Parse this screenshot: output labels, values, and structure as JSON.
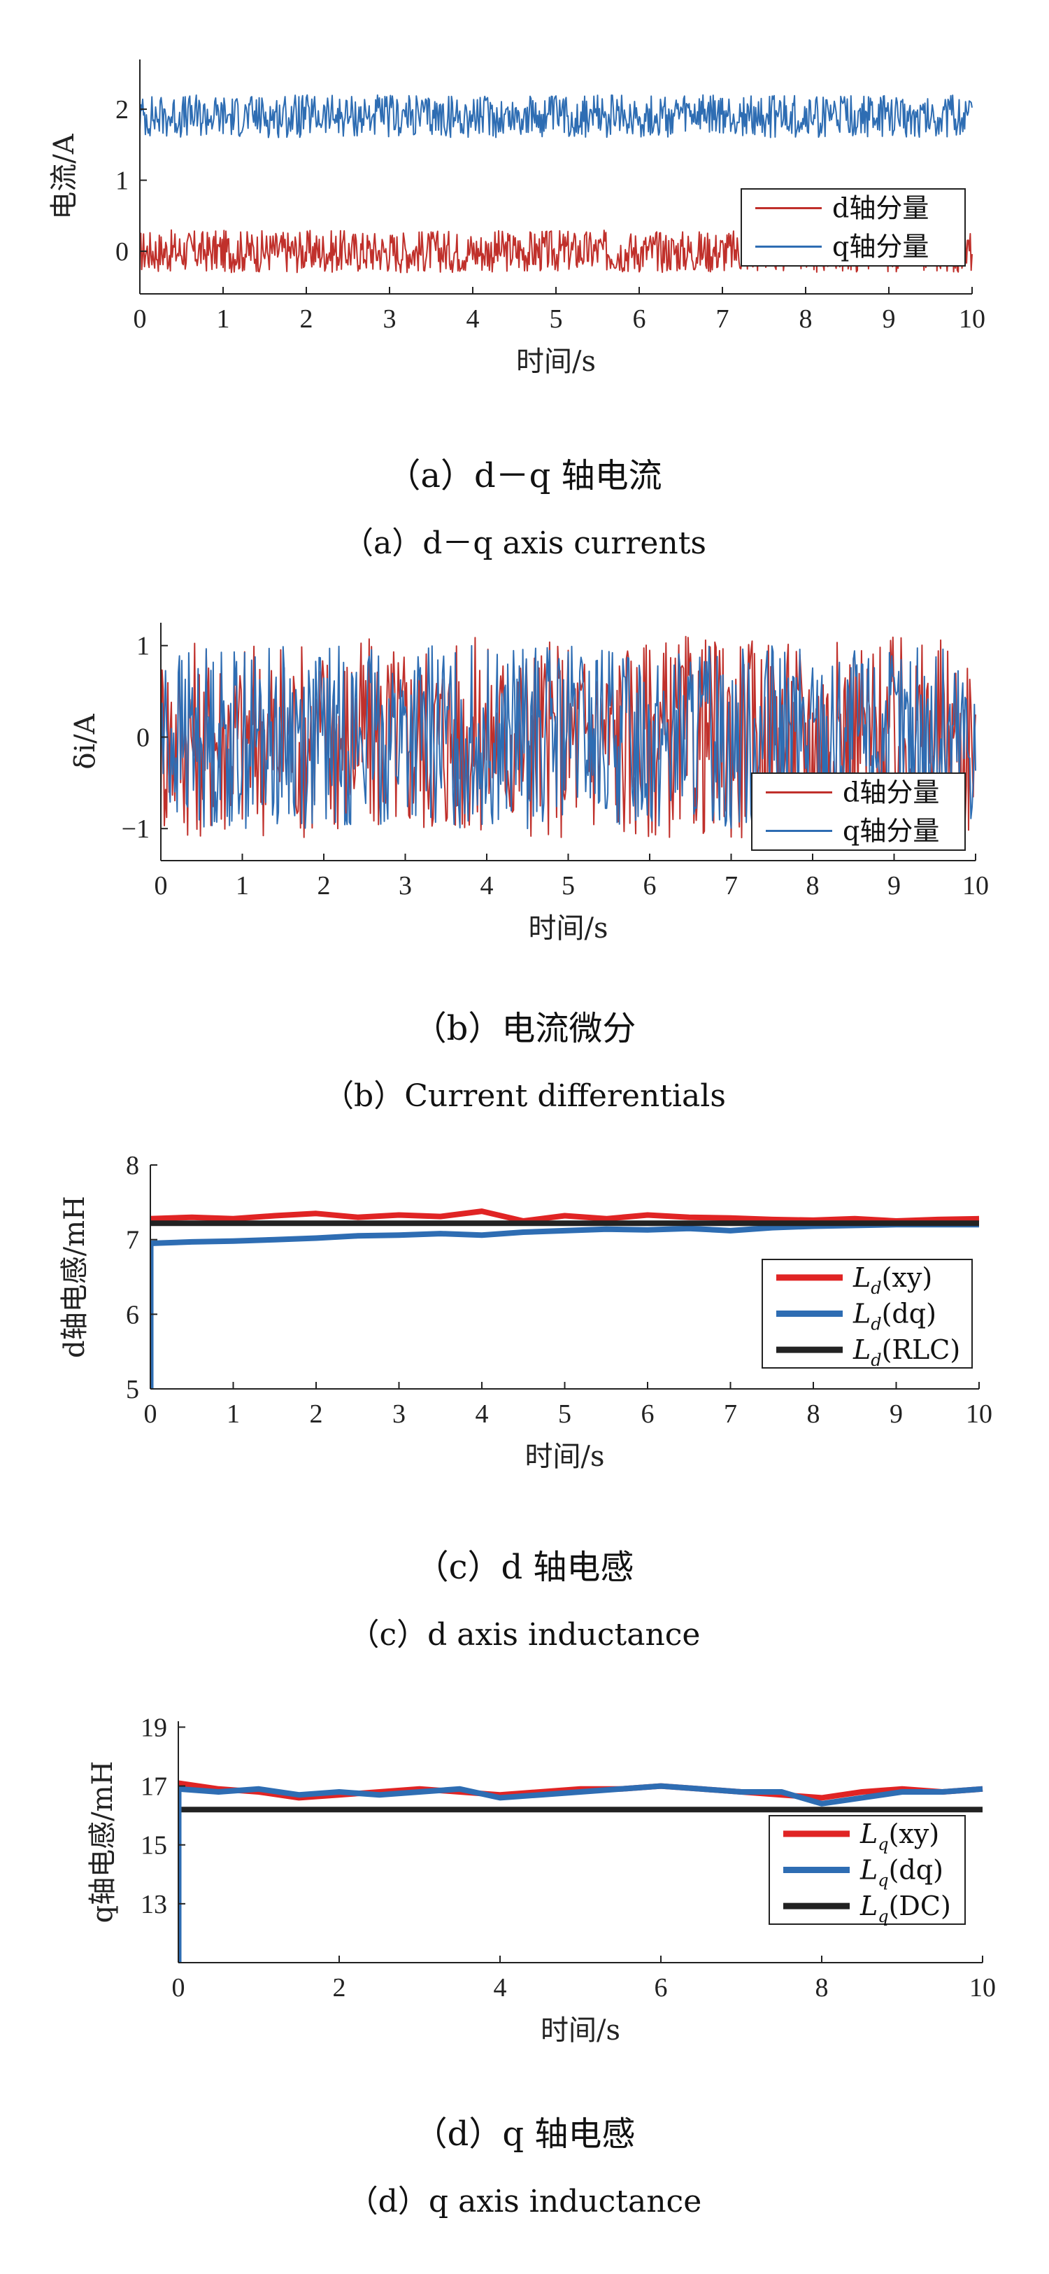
{
  "chart_data": [
    {
      "type": "line",
      "title": "",
      "xlabel": "时间/s",
      "ylabel": "电流/A",
      "xlim": [
        0,
        10
      ],
      "ylim": [
        -0.6,
        2.7
      ],
      "xticks": [
        "0",
        "1",
        "2",
        "3",
        "4",
        "5",
        "6",
        "7",
        "8",
        "9",
        "10"
      ],
      "yticks": [
        "0",
        "1",
        "2"
      ],
      "series": [
        {
          "name": "d轴分量",
          "color": "#c0302b",
          "mean": 0.0,
          "amplitude": 0.3,
          "samples": 900
        },
        {
          "name": "q轴分量",
          "color": "#2e6db3",
          "mean": 1.9,
          "amplitude": 0.3,
          "samples": 900
        }
      ],
      "legend": [
        "d轴分量",
        "q轴分量"
      ],
      "legend_position": "bottom-right",
      "caption_cn": "（a）d－q 轴电流",
      "caption_en": "（a）d－q axis currents"
    },
    {
      "type": "line",
      "title": "",
      "xlabel": "时间/s",
      "ylabel": "δi/A",
      "xlim": [
        0,
        10
      ],
      "ylim": [
        -1.35,
        1.25
      ],
      "xticks": [
        "0",
        "1",
        "2",
        "3",
        "4",
        "5",
        "6",
        "7",
        "8",
        "9",
        "10"
      ],
      "yticks": [
        "−1",
        "0",
        "1"
      ],
      "series": [
        {
          "name": "d轴分量",
          "color": "#c0302b",
          "mean": 0.0,
          "amplitude": 1.1,
          "samples": 700
        },
        {
          "name": "q轴分量",
          "color": "#2e6db3",
          "mean": 0.0,
          "amplitude": 1.0,
          "samples": 700
        }
      ],
      "legend": [
        "d轴分量",
        "q轴分量"
      ],
      "legend_position": "bottom-right",
      "caption_cn": "（b）电流微分",
      "caption_en": "（b）Current differentials"
    },
    {
      "type": "line",
      "title": "",
      "xlabel": "时间/s",
      "ylabel": "d轴电感/mH",
      "xlim": [
        0,
        10
      ],
      "ylim": [
        5,
        8
      ],
      "xticks": [
        "0",
        "1",
        "2",
        "3",
        "4",
        "5",
        "6",
        "7",
        "8",
        "9",
        "10"
      ],
      "yticks": [
        "5",
        "6",
        "7",
        "8"
      ],
      "series": [
        {
          "name": "L_d(xy)",
          "color": "#e02424",
          "x": [
            0,
            0.5,
            1,
            1.5,
            2,
            2.5,
            3,
            3.5,
            4,
            4.5,
            5,
            5.5,
            6,
            6.5,
            7,
            7.5,
            8,
            8.5,
            9,
            9.5,
            10
          ],
          "y": [
            7.28,
            7.3,
            7.28,
            7.32,
            7.35,
            7.3,
            7.33,
            7.31,
            7.38,
            7.25,
            7.32,
            7.28,
            7.33,
            7.3,
            7.29,
            7.27,
            7.26,
            7.28,
            7.25,
            7.27,
            7.28
          ]
        },
        {
          "name": "L_d(dq)",
          "color": "#2e6db3",
          "x": [
            0,
            0.5,
            1,
            1.5,
            2,
            2.5,
            3,
            3.5,
            4,
            4.5,
            5,
            5.5,
            6,
            6.5,
            7,
            7.5,
            8,
            8.5,
            9,
            9.5,
            10
          ],
          "y": [
            6.95,
            6.97,
            6.98,
            7.0,
            7.02,
            7.05,
            7.06,
            7.08,
            7.06,
            7.1,
            7.12,
            7.14,
            7.13,
            7.15,
            7.12,
            7.16,
            7.18,
            7.19,
            7.2,
            7.2,
            7.2
          ]
        },
        {
          "name": "L_d(RLC)",
          "color": "#222222",
          "x": [
            0,
            10
          ],
          "y": [
            7.22,
            7.22
          ]
        }
      ],
      "legend": [
        "(xy)",
        "(dq)",
        "(RLC)"
      ],
      "legend_symbol": "L",
      "legend_sub": "d",
      "legend_position": "right",
      "caption_cn": "（c）d 轴电感",
      "caption_en": "（c）d axis inductance"
    },
    {
      "type": "line",
      "title": "",
      "xlabel": "时间/s",
      "ylabel": "q轴电感/mH",
      "xlim": [
        0,
        10
      ],
      "ylim": [
        11,
        19.2
      ],
      "xticks": [
        "0",
        "2",
        "4",
        "6",
        "8",
        "10"
      ],
      "yticks": [
        "13",
        "15",
        "17",
        "19"
      ],
      "series": [
        {
          "name": "L_q(xy)",
          "color": "#e02424",
          "x": [
            0,
            0.5,
            1,
            1.5,
            2,
            2.5,
            3,
            3.5,
            4,
            4.5,
            5,
            5.5,
            6,
            6.5,
            7,
            7.5,
            8,
            8.5,
            9,
            9.5,
            10
          ],
          "y": [
            17.1,
            16.9,
            16.8,
            16.6,
            16.7,
            16.8,
            16.9,
            16.8,
            16.7,
            16.8,
            16.9,
            16.9,
            17.0,
            16.9,
            16.8,
            16.7,
            16.6,
            16.8,
            16.9,
            16.8,
            16.9
          ]
        },
        {
          "name": "L_q(dq)",
          "color": "#2e6db3",
          "x": [
            0,
            0.5,
            1,
            1.5,
            2,
            2.5,
            3,
            3.5,
            4,
            4.5,
            5,
            5.5,
            6,
            6.5,
            7,
            7.5,
            8,
            8.5,
            9,
            9.5,
            10
          ],
          "y": [
            16.9,
            16.8,
            16.9,
            16.7,
            16.8,
            16.7,
            16.8,
            16.9,
            16.6,
            16.7,
            16.8,
            16.9,
            17.0,
            16.9,
            16.8,
            16.8,
            16.4,
            16.6,
            16.8,
            16.8,
            16.9
          ]
        },
        {
          "name": "L_q(DC)",
          "color": "#222222",
          "x": [
            0,
            10
          ],
          "y": [
            16.2,
            16.2
          ]
        }
      ],
      "legend": [
        "(xy)",
        "(dq)",
        "(DC)"
      ],
      "legend_symbol": "L",
      "legend_sub": "q",
      "legend_position": "right",
      "caption_cn": "（d）q 轴电感",
      "caption_en": "（d）q axis inductance"
    }
  ]
}
